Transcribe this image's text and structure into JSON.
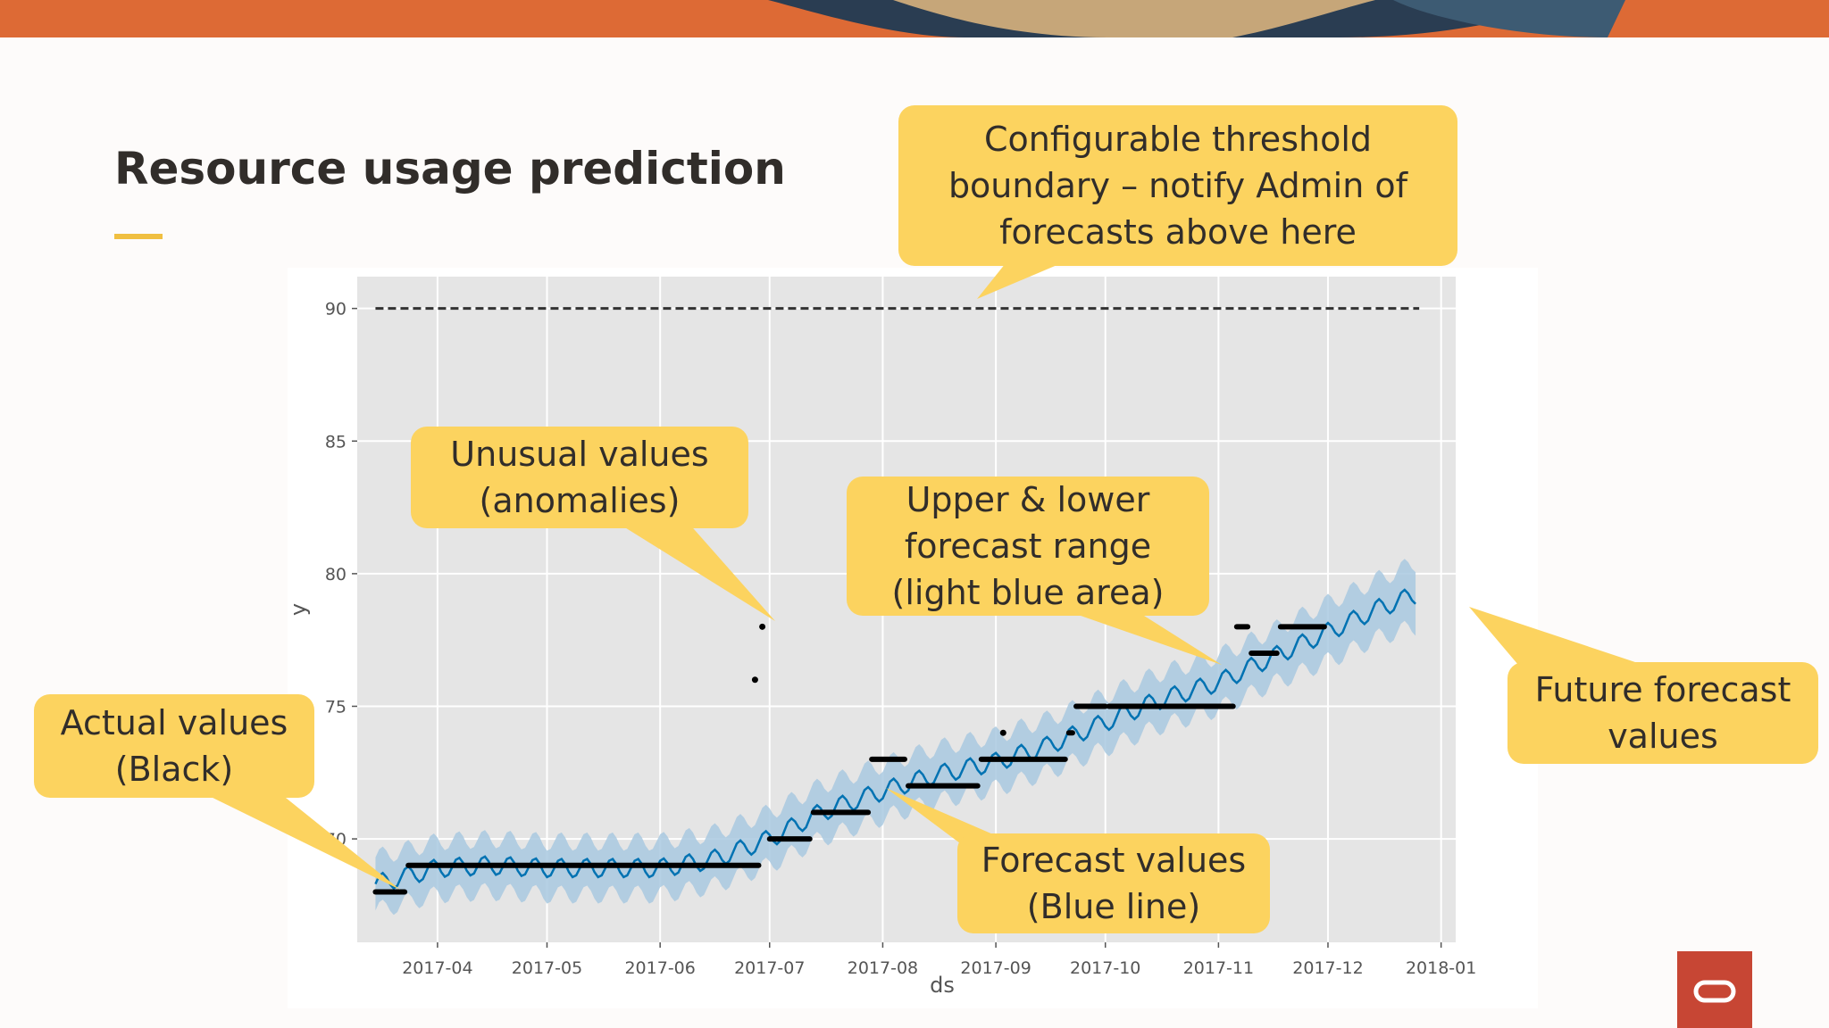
{
  "slide": {
    "title": "Resource usage prediction"
  },
  "callouts": {
    "threshold": "Configurable threshold\nboundary – notify Admin of\nforecasts above here",
    "anomalies": "Unusual values\n(anomalies)",
    "range": "Upper & lower\nforecast range\n(light blue area)",
    "future": "Future forecast\nvalues",
    "actual": "Actual values\n(Black)",
    "forecast": "Forecast values\n(Blue line)"
  },
  "colors": {
    "accent": "#f0bf41",
    "callout": "#fcd35f",
    "plot_bg": "#e5e5e5",
    "forecast_line": "#0072b2",
    "forecast_band": "#a9c9e0",
    "actual_points": "#000000",
    "brand_red": "#c74634"
  },
  "icons": {
    "logo": "oracle-logo-icon"
  },
  "chart_data": {
    "type": "line",
    "title": "",
    "xlabel": "ds",
    "ylabel": "y",
    "x_ticks": [
      "2017-04",
      "2017-05",
      "2017-06",
      "2017-07",
      "2017-08",
      "2017-09",
      "2017-10",
      "2017-11",
      "2017-12",
      "2018-01"
    ],
    "y_ticks": [
      70,
      75,
      80,
      85,
      90
    ],
    "xlim": [
      "2017-03-10",
      "2018-01-05"
    ],
    "ylim": [
      66.1,
      91.2
    ],
    "grid": true,
    "threshold": {
      "value": 90,
      "style": "dashed",
      "x_range": [
        "2017-03-15",
        "2017-12-26"
      ]
    },
    "series": [
      {
        "role": "forecast",
        "x": [
          "2017-03-15",
          "2017-04-01",
          "2017-04-15",
          "2017-05-01",
          "2017-05-15",
          "2017-06-01",
          "2017-06-15",
          "2017-07-01",
          "2017-07-15",
          "2017-08-01",
          "2017-08-15",
          "2017-09-01",
          "2017-09-15",
          "2017-10-01",
          "2017-10-15",
          "2017-11-01",
          "2017-11-15",
          "2017-12-01",
          "2017-12-15",
          "2017-12-25"
        ],
        "y": [
          68.3,
          68.9,
          69.0,
          68.9,
          68.9,
          68.9,
          69.2,
          70.0,
          71.0,
          71.8,
          72.4,
          72.9,
          73.5,
          74.4,
          75.2,
          75.9,
          76.8,
          77.8,
          78.7,
          79.2
        ],
        "lower": [
          67.3,
          67.9,
          68.0,
          67.9,
          67.9,
          67.9,
          68.2,
          69.0,
          70.0,
          70.8,
          71.4,
          71.9,
          72.5,
          73.4,
          74.2,
          74.9,
          75.8,
          76.7,
          77.6,
          78.0
        ],
        "upper": [
          69.3,
          69.9,
          70.0,
          69.9,
          69.9,
          69.9,
          70.2,
          71.0,
          72.0,
          72.8,
          73.4,
          73.9,
          74.5,
          75.4,
          76.2,
          76.9,
          77.8,
          78.9,
          79.8,
          80.4
        ]
      },
      {
        "role": "actual",
        "runs": [
          {
            "from": "2017-03-15",
            "to": "2017-03-23",
            "y": 68
          },
          {
            "from": "2017-03-24",
            "to": "2017-06-28",
            "y": 69
          },
          {
            "from": "2017-07-01",
            "to": "2017-07-12",
            "y": 70
          },
          {
            "from": "2017-07-13",
            "to": "2017-07-28",
            "y": 71
          },
          {
            "from": "2017-07-29",
            "to": "2017-08-07",
            "y": 73
          },
          {
            "from": "2017-08-08",
            "to": "2017-08-27",
            "y": 72
          },
          {
            "from": "2017-08-28",
            "to": "2017-09-20",
            "y": 73
          },
          {
            "from": "2017-09-21",
            "to": "2017-09-22",
            "y": 74
          },
          {
            "from": "2017-09-23",
            "to": "2017-10-01",
            "y": 75
          },
          {
            "from": "2017-10-02",
            "to": "2017-11-05",
            "y": 75
          },
          {
            "from": "2017-11-06",
            "to": "2017-11-09",
            "y": 78
          },
          {
            "from": "2017-11-10",
            "to": "2017-11-17",
            "y": 77
          },
          {
            "from": "2017-11-18",
            "to": "2017-11-30",
            "y": 78
          }
        ],
        "anomalies": [
          {
            "x": "2017-06-27",
            "y": 76
          },
          {
            "x": "2017-06-29",
            "y": 78
          },
          {
            "x": "2017-09-03",
            "y": 74
          }
        ]
      }
    ]
  }
}
